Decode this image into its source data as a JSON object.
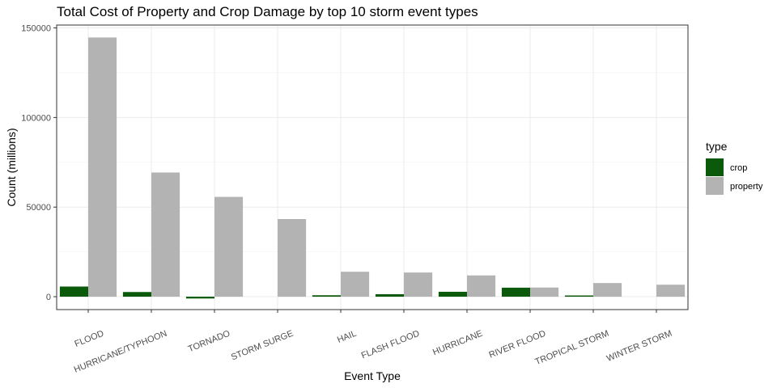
{
  "chart_data": {
    "type": "bar",
    "title": "Total Cost of Property and Crop Damage by top 10 storm event types",
    "xlabel": "Event Type",
    "ylabel": "Count (millions)",
    "categories": [
      "FLOOD",
      "HURRICANE/TYPHOON",
      "TORNADO",
      "STORM SURGE",
      "HAIL",
      "FLASH FLOOD",
      "HURRICANE",
      "RIVER FLOOD",
      "TROPICAL STORM",
      "WINTER STORM"
    ],
    "series": [
      {
        "name": "crop",
        "color": "#0b5a0b",
        "values": [
          5662,
          2608,
          -1000,
          0,
          800,
          1400,
          2741,
          5029,
          678,
          0
        ]
      },
      {
        "name": "property",
        "color": "#b3b3b3",
        "values": [
          144658,
          69306,
          55700,
          43324,
          13931,
          13491,
          11868,
          5119,
          7614,
          6688
        ]
      }
    ],
    "ylim": [
      -7200,
      151600
    ],
    "yticks": [
      0,
      50000,
      100000,
      150000
    ],
    "ytick_labels": [
      "0",
      "50000",
      "100000",
      "150000"
    ],
    "grid": true,
    "legend": {
      "title": "type",
      "position": "right"
    }
  }
}
